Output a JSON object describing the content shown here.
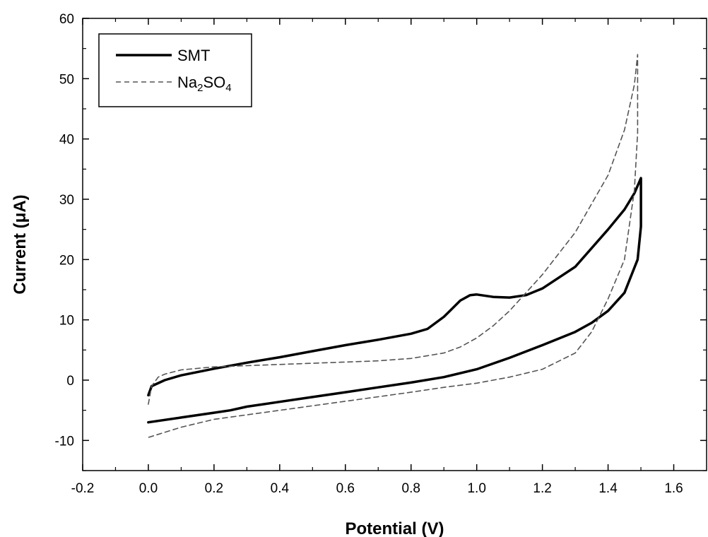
{
  "chart_data": {
    "type": "line",
    "title": "",
    "xlabel": "Potential (V)",
    "ylabel": "Current (μA)",
    "xlim": [
      -0.2,
      1.7
    ],
    "ylim": [
      -15,
      60
    ],
    "x_ticks": [
      -0.2,
      0.0,
      0.2,
      0.4,
      0.6,
      0.8,
      1.0,
      1.2,
      1.4,
      1.6
    ],
    "x_tick_labels": [
      "-0.2",
      "0.0",
      "0.2",
      "0.4",
      "0.6",
      "0.8",
      "1.0",
      "1.2",
      "1.4",
      "1.6"
    ],
    "y_ticks": [
      -10,
      0,
      10,
      20,
      30,
      40,
      50,
      60
    ],
    "y_tick_labels": [
      "-10",
      "0",
      "10",
      "20",
      "30",
      "40",
      "50",
      "60"
    ],
    "grid": false,
    "legend_position": "top-left",
    "series": [
      {
        "name": "SMT",
        "style": "solid",
        "color": "#000000",
        "x": [
          0.0,
          0.01,
          0.05,
          0.1,
          0.2,
          0.3,
          0.4,
          0.5,
          0.6,
          0.7,
          0.8,
          0.85,
          0.9,
          0.95,
          0.98,
          1.0,
          1.05,
          1.1,
          1.15,
          1.2,
          1.3,
          1.4,
          1.45,
          1.48,
          1.5,
          1.5,
          1.49,
          1.45,
          1.4,
          1.35,
          1.3,
          1.2,
          1.1,
          1.0,
          0.9,
          0.8,
          0.7,
          0.6,
          0.5,
          0.4,
          0.3,
          0.25,
          0.2,
          0.1,
          0.0
        ],
        "y": [
          -2.5,
          -1.0,
          0.0,
          0.8,
          1.9,
          2.9,
          3.8,
          4.8,
          5.8,
          6.7,
          7.7,
          8.5,
          10.5,
          13.2,
          14.1,
          14.2,
          13.8,
          13.7,
          14.1,
          15.2,
          18.8,
          25.0,
          28.3,
          31.0,
          33.5,
          25.5,
          20.0,
          14.5,
          11.5,
          9.5,
          8.0,
          5.8,
          3.7,
          1.8,
          0.5,
          -0.4,
          -1.2,
          -2.0,
          -2.8,
          -3.6,
          -4.4,
          -5.0,
          -5.4,
          -6.2,
          -7.0
        ]
      },
      {
        "name": "Na2SO4",
        "style": "dashed",
        "color": "#555555",
        "x": [
          0.0,
          0.01,
          0.03,
          0.05,
          0.1,
          0.2,
          0.3,
          0.4,
          0.5,
          0.6,
          0.7,
          0.8,
          0.9,
          0.95,
          1.0,
          1.05,
          1.1,
          1.2,
          1.3,
          1.4,
          1.45,
          1.48,
          1.49,
          1.49,
          1.48,
          1.45,
          1.4,
          1.35,
          1.3,
          1.2,
          1.1,
          1.0,
          0.9,
          0.8,
          0.6,
          0.4,
          0.2,
          0.1,
          0.0
        ],
        "y": [
          -4.0,
          -1.0,
          0.5,
          1.0,
          1.7,
          2.2,
          2.4,
          2.6,
          2.8,
          3.0,
          3.2,
          3.6,
          4.5,
          5.5,
          7.0,
          9.0,
          11.5,
          17.5,
          24.5,
          34.0,
          41.5,
          49.0,
          54.0,
          41.0,
          31.5,
          20.0,
          13.5,
          8.0,
          4.5,
          1.8,
          0.5,
          -0.5,
          -1.2,
          -2.0,
          -3.5,
          -5.0,
          -6.5,
          -7.8,
          -9.5
        ]
      }
    ]
  }
}
